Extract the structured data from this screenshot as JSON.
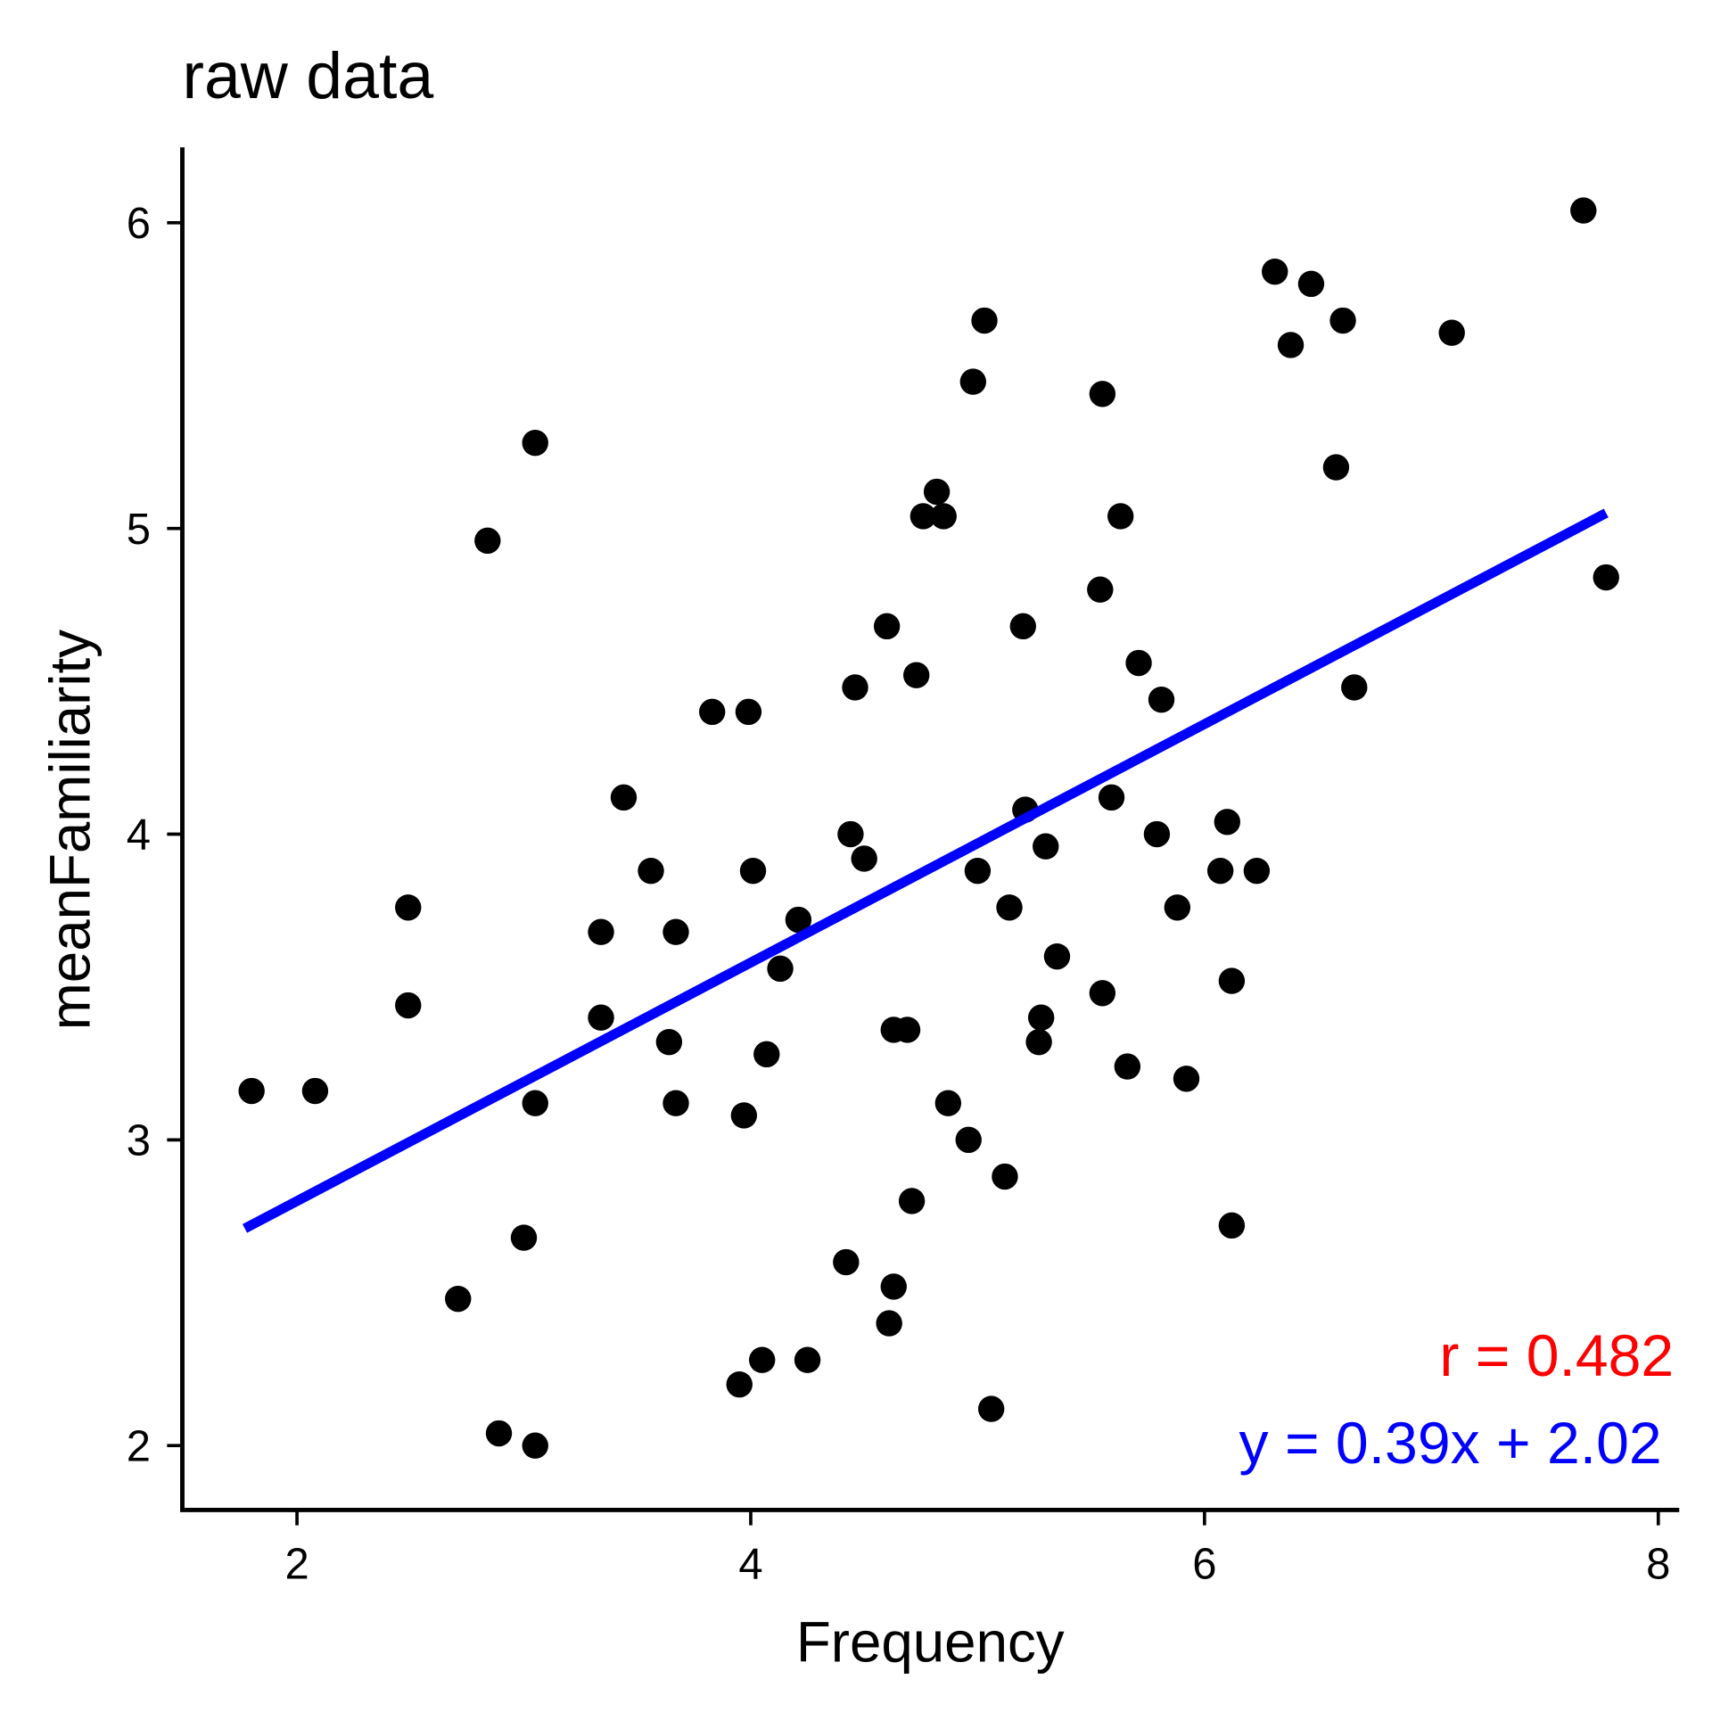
{
  "chart_data": {
    "type": "scatter",
    "title": "raw data",
    "xlabel": "Frequency",
    "ylabel": "meanFamiliarity",
    "xlim": [
      1.5,
      8.05
    ],
    "ylim": [
      1.8,
      6.25
    ],
    "xticks": [
      "2",
      "4",
      "6",
      "8"
    ],
    "yticks": [
      "2",
      "3",
      "4",
      "5",
      "6"
    ],
    "grid": false,
    "points": [
      [
        1.8,
        3.16
      ],
      [
        2.08,
        3.16
      ],
      [
        2.49,
        3.76
      ],
      [
        2.49,
        3.44
      ],
      [
        2.71,
        2.48
      ],
      [
        2.84,
        4.96
      ],
      [
        2.89,
        2.04
      ],
      [
        3.0,
        2.68
      ],
      [
        3.05,
        5.28
      ],
      [
        3.05,
        3.12
      ],
      [
        3.05,
        2.0
      ],
      [
        3.34,
        3.68
      ],
      [
        3.34,
        3.4
      ],
      [
        3.44,
        4.12
      ],
      [
        3.56,
        3.88
      ],
      [
        3.64,
        3.32
      ],
      [
        3.67,
        3.68
      ],
      [
        3.67,
        3.12
      ],
      [
        3.83,
        4.4
      ],
      [
        3.97,
        3.08
      ],
      [
        3.95,
        2.2
      ],
      [
        3.99,
        4.4
      ],
      [
        4.01,
        3.88
      ],
      [
        4.05,
        2.28
      ],
      [
        4.07,
        3.28
      ],
      [
        4.13,
        3.56
      ],
      [
        4.21,
        3.72
      ],
      [
        4.25,
        2.28
      ],
      [
        4.42,
        2.6
      ],
      [
        4.44,
        4.0
      ],
      [
        4.46,
        4.48
      ],
      [
        4.5,
        3.92
      ],
      [
        4.6,
        4.68
      ],
      [
        4.61,
        2.4
      ],
      [
        4.63,
        3.36
      ],
      [
        4.63,
        2.52
      ],
      [
        4.69,
        3.36
      ],
      [
        4.71,
        2.8
      ],
      [
        4.73,
        4.52
      ],
      [
        4.76,
        5.04
      ],
      [
        4.82,
        5.12
      ],
      [
        4.85,
        5.04
      ],
      [
        4.87,
        3.12
      ],
      [
        4.96,
        3.0
      ],
      [
        4.98,
        5.48
      ],
      [
        5.0,
        3.88
      ],
      [
        5.03,
        5.68
      ],
      [
        5.06,
        2.12
      ],
      [
        5.12,
        2.88
      ],
      [
        5.14,
        3.76
      ],
      [
        5.2,
        4.68
      ],
      [
        5.21,
        4.08
      ],
      [
        5.27,
        3.32
      ],
      [
        5.28,
        3.4
      ],
      [
        5.3,
        3.96
      ],
      [
        5.35,
        3.6
      ],
      [
        5.54,
        4.8
      ],
      [
        5.55,
        3.48
      ],
      [
        5.55,
        5.44
      ],
      [
        5.59,
        4.12
      ],
      [
        5.63,
        5.04
      ],
      [
        5.66,
        3.24
      ],
      [
        5.71,
        4.56
      ],
      [
        5.79,
        4.0
      ],
      [
        5.81,
        4.44
      ],
      [
        5.88,
        3.76
      ],
      [
        5.92,
        3.2
      ],
      [
        6.07,
        3.88
      ],
      [
        6.1,
        4.04
      ],
      [
        6.12,
        2.72
      ],
      [
        6.12,
        3.52
      ],
      [
        6.23,
        3.88
      ],
      [
        6.31,
        5.84
      ],
      [
        6.38,
        5.6
      ],
      [
        6.47,
        5.8
      ],
      [
        6.58,
        5.2
      ],
      [
        6.61,
        5.68
      ],
      [
        6.66,
        4.48
      ],
      [
        7.09,
        5.64
      ],
      [
        7.67,
        6.04
      ],
      [
        7.77,
        4.84
      ]
    ],
    "fit_line": {
      "slope": 0.39,
      "intercept": 2.02,
      "x_range": [
        1.77,
        7.77
      ],
      "color": "#0000ff"
    },
    "annotations": {
      "r_label": "r = 0.482",
      "r_color": "#ff0000",
      "eq_label": "y = 0.39x + 2.02",
      "eq_color": "#0000ff",
      "placement": "bottom-right"
    }
  }
}
